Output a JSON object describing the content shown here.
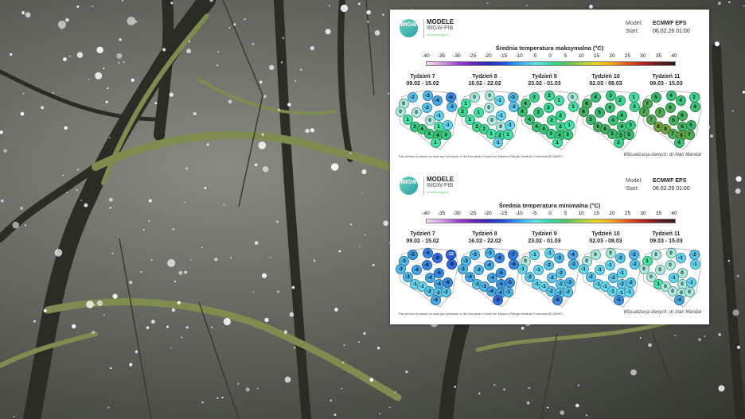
{
  "colors": {
    "background_dark": "#33352f",
    "moss": "#7d8c4f",
    "snow": "#ffffff"
  },
  "panels": [
    {
      "logo": "IMGW",
      "brand_title": "MODELE",
      "brand_sub": "IMGW-PIB",
      "brand_url": "modele.imgw.pl",
      "model_label": "Model:",
      "model_value": "ECMWF EPS",
      "start_label": "Start:",
      "start_value": "06.02.26 01:00",
      "title": "Średnia temperatura maksymalna (°C)",
      "scale_ticks": [
        "-40",
        "-35",
        "-30",
        "-25",
        "-20",
        "-15",
        "-10",
        "-5",
        "0",
        "5",
        "10",
        "15",
        "20",
        "25",
        "30",
        "35",
        "40"
      ],
      "weeks": [
        {
          "label": "Tydzień 7",
          "dates": "09.02 - 15.02",
          "values": [
            0,
            -2,
            -3,
            -4,
            -6,
            -3,
            -2,
            0,
            0,
            0,
            -1,
            1,
            1,
            -1,
            3,
            4,
            3,
            4,
            3,
            1
          ]
        },
        {
          "label": "Tydzień 8",
          "dates": "16.02 - 22.02",
          "values": [
            1,
            0,
            0,
            -1,
            -3,
            -2,
            0,
            2,
            1,
            0,
            -1,
            1,
            0,
            -1,
            2,
            2,
            1,
            2,
            1,
            -1
          ]
        },
        {
          "label": "Tydzień 9",
          "dates": "23.02 - 01.03",
          "values": [
            4,
            2,
            2,
            1,
            0,
            1,
            2,
            4,
            3,
            2,
            2,
            4,
            2,
            1,
            4,
            4,
            3,
            4,
            3,
            1
          ]
        },
        {
          "label": "Tydzień 10",
          "dates": "02.03 - 08.03",
          "values": [
            6,
            4,
            3,
            2,
            1,
            2,
            4,
            6,
            5,
            4,
            4,
            5,
            4,
            3,
            6,
            6,
            5,
            5,
            5,
            2
          ]
        },
        {
          "label": "Tydzień 11",
          "dates": "09.03 - 15.03",
          "values": [
            7,
            5,
            4,
            4,
            2,
            4,
            6,
            7,
            7,
            6,
            6,
            7,
            6,
            5,
            8,
            8,
            7,
            8,
            7,
            4
          ]
        }
      ],
      "footer_left": "This service is based on data and products of the European Centre for Medium-Range Weather Forecasts (ECMWF)",
      "footer_right": "Wizualizacja danych: dr Alan Mandal"
    },
    {
      "logo": "IMGW",
      "brand_title": "MODELE",
      "brand_sub": "IMGW-PIB",
      "brand_url": "modele.imgw.pl",
      "model_label": "Model:",
      "model_value": "ECMWF EPS",
      "start_label": "Start:",
      "start_value": "06.02.26 01:00",
      "title": "Średnia temperatura minimalna (°C)",
      "scale_ticks": [
        "-40",
        "-35",
        "-30",
        "-25",
        "-20",
        "-15",
        "-10",
        "-5",
        "0",
        "5",
        "10",
        "15",
        "20",
        "25",
        "30",
        "35",
        "40"
      ],
      "weeks": [
        {
          "label": "Tydzień 7",
          "dates": "09.02 - 15.02",
          "values": [
            -3,
            -5,
            -6,
            -8,
            -12,
            -9,
            -6,
            -3,
            -4,
            -4,
            -6,
            -3,
            -4,
            -6,
            -1,
            -1,
            -2,
            -2,
            -2,
            -4
          ]
        },
        {
          "label": "Tydzień 8",
          "dates": "16.02 - 22.02",
          "values": [
            -3,
            -3,
            -3,
            -6,
            -7,
            -6,
            -4,
            -3,
            -3,
            -4,
            -5,
            -4,
            -5,
            -5,
            -2,
            -3,
            -4,
            -4,
            -3,
            -8
          ]
        },
        {
          "label": "Tydzień 9",
          "dates": "23.02 - 01.03",
          "values": [
            0,
            -1,
            -1,
            -3,
            -4,
            -3,
            -2,
            -1,
            -1,
            -2,
            -2,
            -2,
            -2,
            -3,
            -1,
            -1,
            -2,
            -2,
            -2,
            -6
          ]
        },
        {
          "label": "Tydzień 10",
          "dates": "02.03 - 08.03",
          "values": [
            0,
            0,
            0,
            -2,
            -3,
            -2,
            -1,
            -1,
            -1,
            -2,
            -1,
            -2,
            -2,
            -2,
            -1,
            -1,
            -1,
            -1,
            -1,
            -5
          ]
        },
        {
          "label": "Tydzień 11",
          "dates": "09.03 - 15.03",
          "values": [
            1,
            0,
            0,
            -1,
            -2,
            -1,
            0,
            0,
            0,
            -1,
            0,
            0,
            0,
            -1,
            1,
            0,
            0,
            0,
            0,
            -4
          ]
        }
      ],
      "footer_left": "This service is based on data and products of the European Centre for Medium-Range Weather Forecasts (ECMWF)",
      "footer_right": "Wizualizacja danych: dr Alan Mandal"
    }
  ]
}
